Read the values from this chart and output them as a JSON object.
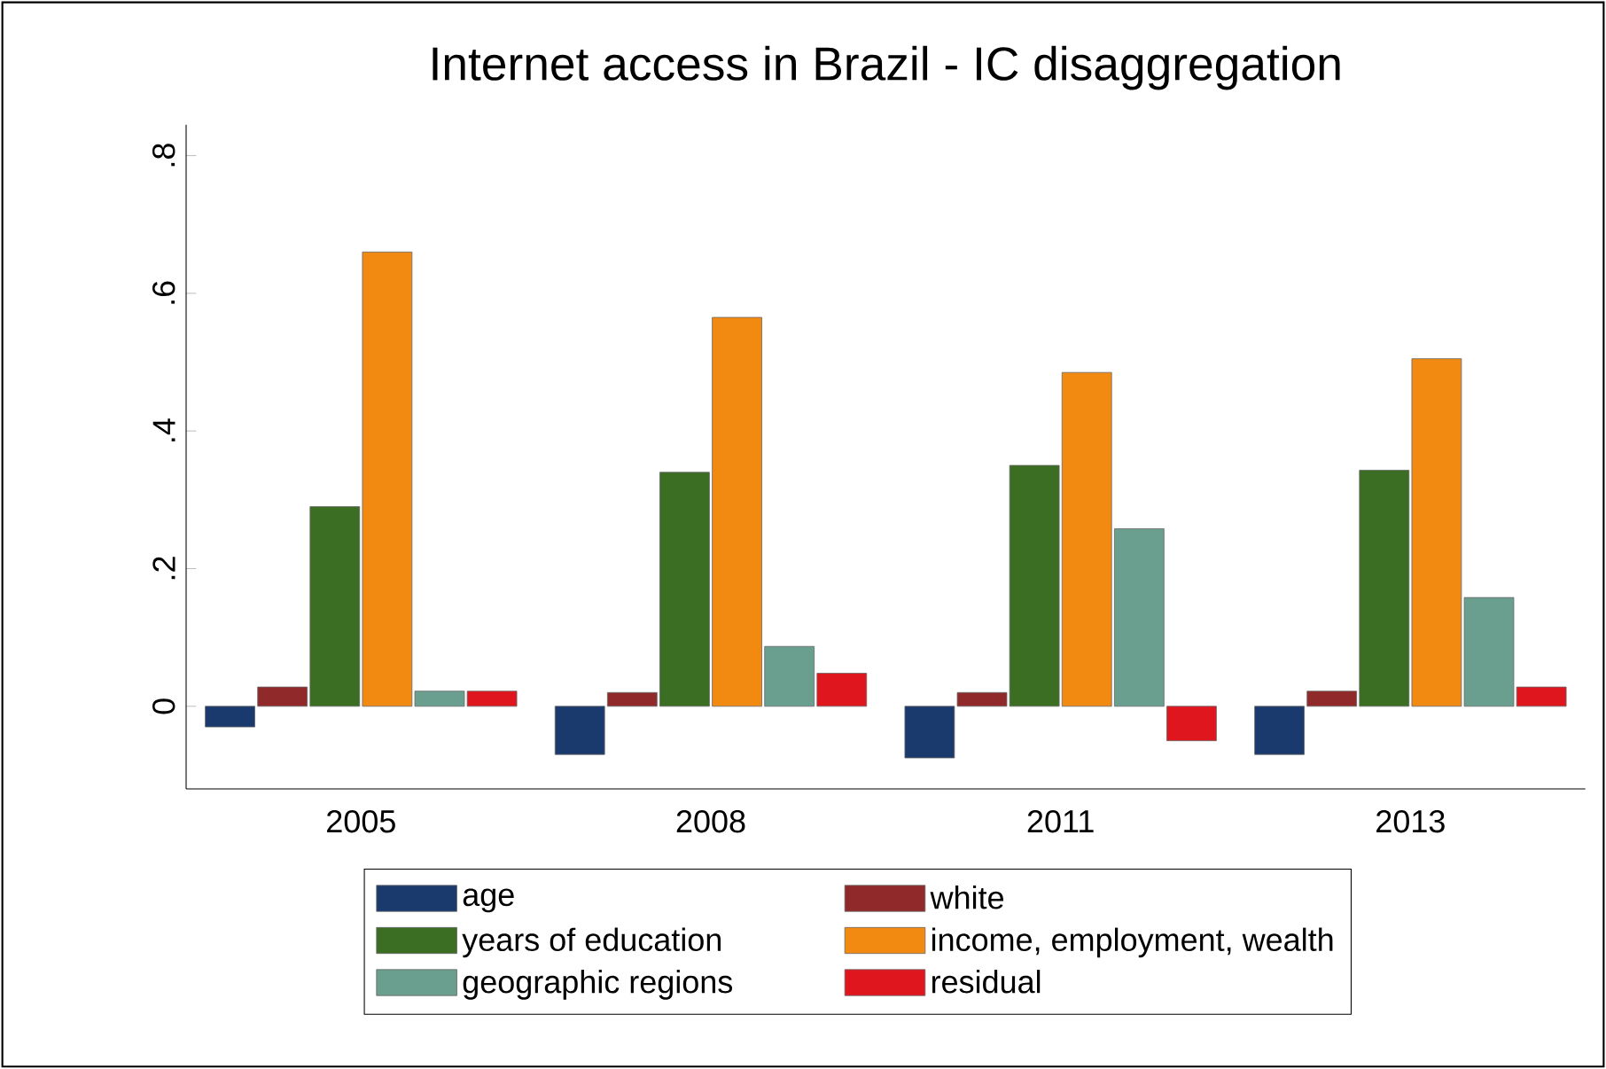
{
  "chart_data": {
    "type": "bar",
    "title": "Internet access in Brazil - IC disaggregation",
    "categories": [
      "2005",
      "2008",
      "2011",
      "2013"
    ],
    "series": [
      {
        "name": "age",
        "color": "#1a3a6e",
        "values": [
          -0.03,
          -0.07,
          -0.075,
          -0.07
        ]
      },
      {
        "name": "white",
        "color": "#90292a",
        "values": [
          0.028,
          0.02,
          0.02,
          0.022
        ]
      },
      {
        "name": "years of education",
        "color": "#3b6e22",
        "values": [
          0.29,
          0.34,
          0.35,
          0.343
        ]
      },
      {
        "name": "income, employment, wealth",
        "color": "#f28a12",
        "values": [
          0.66,
          0.565,
          0.485,
          0.505
        ]
      },
      {
        "name": "geographic regions",
        "color": "#6a9f8f",
        "values": [
          0.022,
          0.087,
          0.258,
          0.158
        ]
      },
      {
        "name": "residual",
        "color": "#e0161e",
        "values": [
          0.022,
          0.048,
          -0.05,
          0.028
        ]
      }
    ],
    "ylim": [
      -0.12,
      0.845
    ],
    "yticks": [
      0,
      {
        "value": 0.2,
        "label": ".2"
      },
      {
        "value": 0.4,
        "label": ".4"
      },
      {
        "value": 0.6,
        "label": ".6"
      },
      {
        "value": 0.8,
        "label": ".8"
      }
    ],
    "grid": false,
    "legend": "bottom"
  }
}
